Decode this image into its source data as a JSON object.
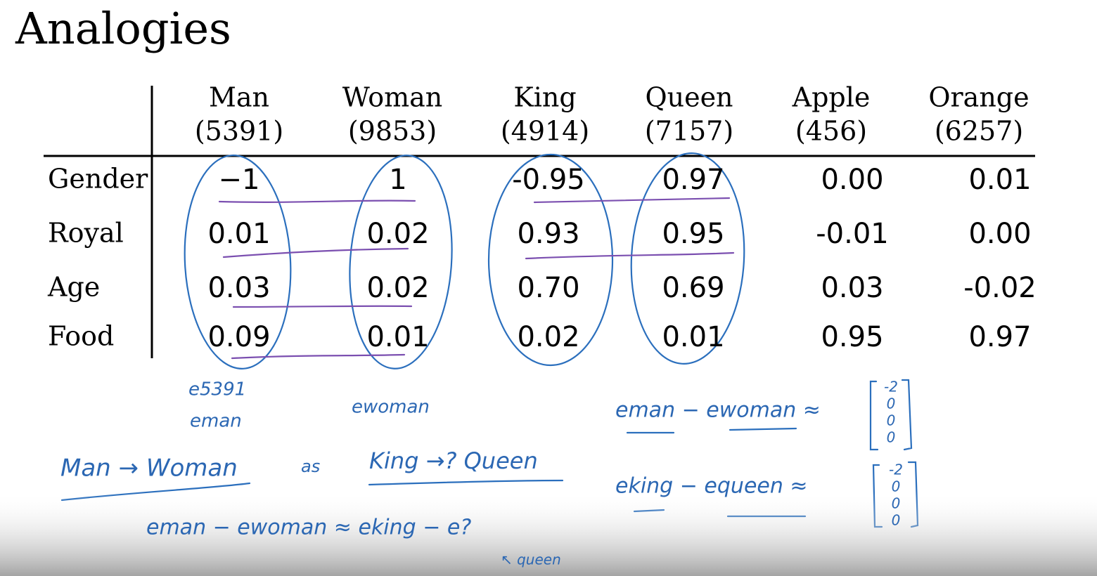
{
  "title": "Analogies",
  "table": {
    "columns": [
      {
        "word": "Man",
        "index": "(5391)"
      },
      {
        "word": "Woman",
        "index": "(9853)"
      },
      {
        "word": "King",
        "index": "(4914)"
      },
      {
        "word": "Queen",
        "index": "(7157)"
      },
      {
        "word": "Apple",
        "index": "(456)"
      },
      {
        "word": "Orange",
        "index": "(6257)"
      }
    ],
    "rows": [
      {
        "label": "Gender",
        "values": [
          "−1",
          "1",
          "-0.95",
          "0.97",
          "0.00",
          "0.01"
        ]
      },
      {
        "label": "Royal",
        "values": [
          "0.01",
          "0.02",
          "0.93",
          "0.95",
          "-0.01",
          "0.00"
        ]
      },
      {
        "label": "Age",
        "values": [
          "0.03",
          "0.02",
          "0.70",
          "0.69",
          "0.03",
          "-0.02"
        ]
      },
      {
        "label": "Food",
        "values": [
          "0.09",
          "0.01",
          "0.02",
          "0.01",
          "0.95",
          "0.97"
        ]
      }
    ]
  },
  "annotations": [
    "e5391",
    "eman",
    "ewoman",
    "Man → Woman",
    "as",
    "King →? Queen",
    "eman − ewoman ≈",
    "eking − equeen ≈",
    "eman − ewoman ≈ eking − e?",
    "↖ queen"
  ],
  "vectors": [
    [
      "-2",
      "0",
      "0",
      "0"
    ],
    [
      "-2",
      "0",
      "0",
      "0"
    ]
  ]
}
